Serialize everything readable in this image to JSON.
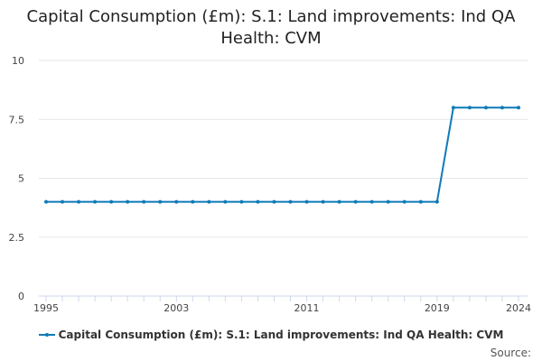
{
  "chart_data": {
    "type": "line",
    "title": "Capital Consumption (£m): S.1: Land improvements: Ind QA Health: CVM",
    "xlabel": "",
    "ylabel": "",
    "x": [
      1995,
      1996,
      1997,
      1998,
      1999,
      2000,
      2001,
      2002,
      2003,
      2004,
      2005,
      2006,
      2007,
      2008,
      2009,
      2010,
      2011,
      2012,
      2013,
      2014,
      2015,
      2016,
      2017,
      2018,
      2019,
      2020,
      2021,
      2022,
      2023,
      2024
    ],
    "series": [
      {
        "name": "Capital Consumption (£m): S.1: Land improvements: Ind QA Health: CVM",
        "color": "#0f7ab8",
        "values": [
          4,
          4,
          4,
          4,
          4,
          4,
          4,
          4,
          4,
          4,
          4,
          4,
          4,
          4,
          4,
          4,
          4,
          4,
          4,
          4,
          4,
          4,
          4,
          4,
          4,
          8,
          8,
          8,
          8,
          8
        ]
      }
    ],
    "xlim": [
      1995,
      2024
    ],
    "ylim": [
      0,
      10
    ],
    "x_tick_labels": [
      "1995",
      "2003",
      "2011",
      "2019",
      "2024"
    ],
    "y_tick_labels": [
      "0",
      "2.5",
      "5",
      "7.5",
      "10"
    ],
    "grid": true,
    "legend": "bottom",
    "source_label": "Source:"
  }
}
